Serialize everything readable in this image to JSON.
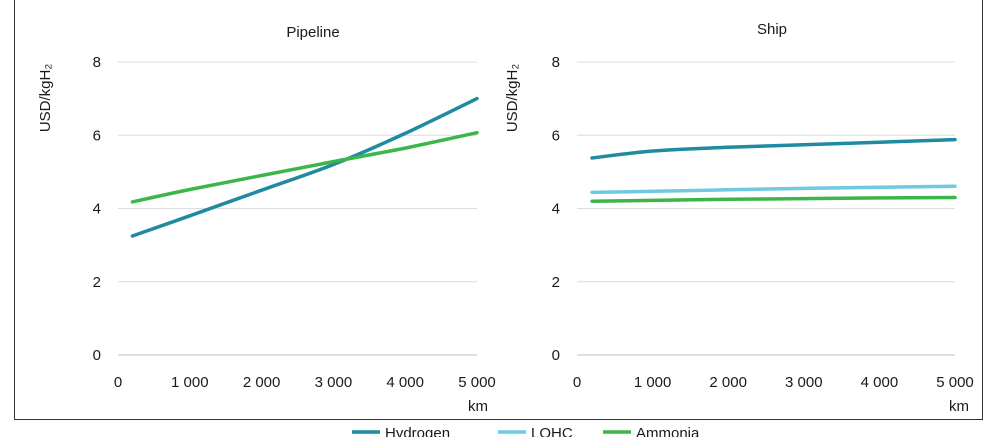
{
  "colors": {
    "hydrogen": "#1f8aa0",
    "lohc": "#6ecae0",
    "ammonia": "#3cb54a",
    "grid": "#dcdcdc",
    "axis": "#bfbfbf"
  },
  "legend": {
    "items": [
      {
        "label": "Hydrogen",
        "color_key": "hydrogen"
      },
      {
        "label": "LOHC",
        "color_key": "lohc"
      },
      {
        "label": "Ammonia",
        "color_key": "ammonia"
      }
    ]
  },
  "chart_data": [
    {
      "type": "line",
      "title": "Pipeline",
      "xlabel": "km",
      "ylabel": "USD/kgH₂",
      "xlim": [
        0,
        5000
      ],
      "ylim": [
        0,
        8
      ],
      "x_ticks": [
        0,
        1000,
        2000,
        3000,
        4000,
        5000
      ],
      "x_tick_labels": [
        "0",
        "1 000",
        "2 000",
        "3 000",
        "4 000",
        "5 000"
      ],
      "y_ticks": [
        0,
        2,
        4,
        6,
        8
      ],
      "y_tick_labels": [
        "0",
        "2",
        "4",
        "6",
        "8"
      ],
      "grid": true,
      "series": [
        {
          "name": "Hydrogen",
          "color_key": "hydrogen",
          "x": [
            200,
            1000,
            2000,
            3000,
            4000,
            5000
          ],
          "y": [
            3.25,
            3.8,
            4.5,
            5.2,
            6.05,
            7.0
          ]
        },
        {
          "name": "Ammonia",
          "color_key": "ammonia",
          "x": [
            200,
            1000,
            2000,
            3000,
            4000,
            5000
          ],
          "y": [
            4.18,
            4.52,
            4.9,
            5.28,
            5.65,
            6.07
          ]
        }
      ]
    },
    {
      "type": "line",
      "title": "Ship",
      "xlabel": "km",
      "ylabel": "USD/kgH₂",
      "xlim": [
        0,
        5000
      ],
      "ylim": [
        0,
        8
      ],
      "x_ticks": [
        0,
        1000,
        2000,
        3000,
        4000,
        5000
      ],
      "x_tick_labels": [
        "0",
        "1 000",
        "2 000",
        "3 000",
        "4 000",
        "5 000"
      ],
      "y_ticks": [
        0,
        2,
        4,
        6,
        8
      ],
      "y_tick_labels": [
        "0",
        "2",
        "4",
        "6",
        "8"
      ],
      "grid": true,
      "series": [
        {
          "name": "Hydrogen",
          "color_key": "hydrogen",
          "x": [
            200,
            1000,
            2000,
            3000,
            4000,
            5000
          ],
          "y": [
            5.38,
            5.57,
            5.67,
            5.74,
            5.81,
            5.88
          ]
        },
        {
          "name": "LOHC",
          "color_key": "lohc",
          "x": [
            200,
            1000,
            2000,
            3000,
            4000,
            5000
          ],
          "y": [
            4.44,
            4.47,
            4.51,
            4.55,
            4.58,
            4.61
          ]
        },
        {
          "name": "Ammonia",
          "color_key": "ammonia",
          "x": [
            200,
            1000,
            2000,
            3000,
            4000,
            5000
          ],
          "y": [
            4.2,
            4.22,
            4.25,
            4.27,
            4.29,
            4.3
          ]
        }
      ]
    }
  ]
}
